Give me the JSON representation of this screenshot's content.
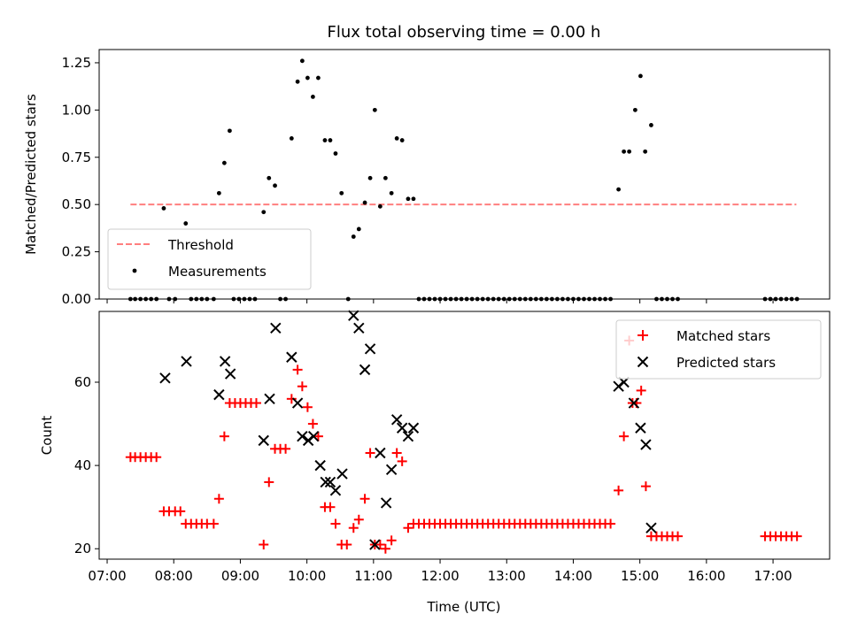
{
  "chart_data": {
    "type": "scatter",
    "title": "Flux total observing time = 0.00 h",
    "xlabel": "Time (UTC)",
    "xlim": [
      6.88,
      17.85
    ],
    "x_ticks": [
      {
        "v": 7,
        "label": "07:00"
      },
      {
        "v": 8,
        "label": "08:00"
      },
      {
        "v": 9,
        "label": "09:00"
      },
      {
        "v": 10,
        "label": "10:00"
      },
      {
        "v": 11,
        "label": "11:00"
      },
      {
        "v": 12,
        "label": "12:00"
      },
      {
        "v": 13,
        "label": "13:00"
      },
      {
        "v": 14,
        "label": "14:00"
      },
      {
        "v": 15,
        "label": "15:00"
      },
      {
        "v": 16,
        "label": "16:00"
      },
      {
        "v": 17,
        "label": "17:00"
      }
    ],
    "top_panel": {
      "ylabel": "Matched/Predicted stars",
      "ylim": [
        0,
        1.32
      ],
      "y_ticks": [
        "0.00",
        "0.25",
        "0.50",
        "0.75",
        "1.00",
        "1.25"
      ],
      "legend_position": "lower-left",
      "threshold": {
        "name": "Threshold",
        "value": 0.5,
        "x_range": [
          7.35,
          17.35
        ],
        "color": "#ff7f7f"
      },
      "measurements": {
        "name": "Measurements",
        "color": "#000000",
        "points": [
          [
            7.35,
            0
          ],
          [
            7.42,
            0
          ],
          [
            7.5,
            0
          ],
          [
            7.58,
            0
          ],
          [
            7.66,
            0
          ],
          [
            7.74,
            0
          ],
          [
            7.85,
            0.48
          ],
          [
            7.93,
            0
          ],
          [
            8.02,
            0
          ],
          [
            8.18,
            0.4
          ],
          [
            8.26,
            0
          ],
          [
            8.34,
            0
          ],
          [
            8.42,
            0
          ],
          [
            8.5,
            0
          ],
          [
            8.6,
            0
          ],
          [
            8.68,
            0.56
          ],
          [
            8.76,
            0.72
          ],
          [
            8.84,
            0.89
          ],
          [
            8.9,
            0
          ],
          [
            8.98,
            0
          ],
          [
            9.06,
            0
          ],
          [
            9.14,
            0
          ],
          [
            9.22,
            0
          ],
          [
            9.35,
            0.46
          ],
          [
            9.43,
            0.64
          ],
          [
            9.52,
            0.6
          ],
          [
            9.6,
            0
          ],
          [
            9.68,
            0
          ],
          [
            9.77,
            0.85
          ],
          [
            9.86,
            1.15
          ],
          [
            9.93,
            1.26
          ],
          [
            10.01,
            1.17
          ],
          [
            10.09,
            1.07
          ],
          [
            10.17,
            1.17
          ],
          [
            10.27,
            0.84
          ],
          [
            10.35,
            0.84
          ],
          [
            10.43,
            0.77
          ],
          [
            10.52,
            0.56
          ],
          [
            10.62,
            0
          ],
          [
            10.7,
            0.33
          ],
          [
            10.78,
            0.37
          ],
          [
            10.87,
            0.51
          ],
          [
            10.95,
            0.64
          ],
          [
            11.02,
            1.0
          ],
          [
            11.1,
            0.49
          ],
          [
            11.18,
            0.64
          ],
          [
            11.27,
            0.56
          ],
          [
            11.35,
            0.85
          ],
          [
            11.43,
            0.84
          ],
          [
            11.52,
            0.53
          ],
          [
            11.6,
            0.53
          ],
          [
            11.68,
            0
          ],
          [
            11.76,
            0
          ],
          [
            11.84,
            0
          ],
          [
            11.92,
            0
          ],
          [
            12.0,
            0
          ],
          [
            12.08,
            0
          ],
          [
            12.16,
            0
          ],
          [
            12.24,
            0
          ],
          [
            12.32,
            0
          ],
          [
            12.4,
            0
          ],
          [
            12.48,
            0
          ],
          [
            12.56,
            0
          ],
          [
            12.64,
            0
          ],
          [
            12.72,
            0
          ],
          [
            12.8,
            0
          ],
          [
            12.88,
            0
          ],
          [
            12.96,
            0
          ],
          [
            13.04,
            0
          ],
          [
            13.12,
            0
          ],
          [
            13.2,
            0
          ],
          [
            13.28,
            0
          ],
          [
            13.36,
            0
          ],
          [
            13.44,
            0
          ],
          [
            13.52,
            0
          ],
          [
            13.6,
            0
          ],
          [
            13.68,
            0
          ],
          [
            13.76,
            0
          ],
          [
            13.84,
            0
          ],
          [
            13.92,
            0
          ],
          [
            14.0,
            0
          ],
          [
            14.08,
            0
          ],
          [
            14.16,
            0
          ],
          [
            14.24,
            0
          ],
          [
            14.32,
            0
          ],
          [
            14.4,
            0
          ],
          [
            14.48,
            0
          ],
          [
            14.56,
            0
          ],
          [
            14.68,
            0.58
          ],
          [
            14.76,
            0.78
          ],
          [
            14.84,
            0.78
          ],
          [
            14.93,
            1.0
          ],
          [
            15.01,
            1.18
          ],
          [
            15.08,
            0.78
          ],
          [
            15.17,
            0.92
          ],
          [
            15.25,
            0
          ],
          [
            15.33,
            0
          ],
          [
            15.41,
            0
          ],
          [
            15.49,
            0
          ],
          [
            15.57,
            0
          ],
          [
            16.88,
            0
          ],
          [
            16.96,
            0
          ],
          [
            17.04,
            0
          ],
          [
            17.12,
            0
          ],
          [
            17.2,
            0
          ],
          [
            17.28,
            0
          ],
          [
            17.36,
            0
          ]
        ]
      }
    },
    "bottom_panel": {
      "ylabel": "Count",
      "ylim": [
        17.5,
        77
      ],
      "y_ticks": [
        20,
        40,
        60
      ],
      "legend_position": "upper-right",
      "series": [
        {
          "name": "Matched stars",
          "marker": "plus",
          "color": "#ff0000",
          "points": [
            [
              7.35,
              42
            ],
            [
              7.42,
              42
            ],
            [
              7.5,
              42
            ],
            [
              7.58,
              42
            ],
            [
              7.66,
              42
            ],
            [
              7.74,
              42
            ],
            [
              7.85,
              29
            ],
            [
              7.93,
              29
            ],
            [
              8.02,
              29
            ],
            [
              8.1,
              29
            ],
            [
              8.18,
              26
            ],
            [
              8.26,
              26
            ],
            [
              8.34,
              26
            ],
            [
              8.42,
              26
            ],
            [
              8.5,
              26
            ],
            [
              8.6,
              26
            ],
            [
              8.68,
              32
            ],
            [
              8.76,
              47
            ],
            [
              8.84,
              55
            ],
            [
              8.92,
              55
            ],
            [
              9.0,
              55
            ],
            [
              9.08,
              55
            ],
            [
              9.16,
              55
            ],
            [
              9.24,
              55
            ],
            [
              9.35,
              21
            ],
            [
              9.43,
              36
            ],
            [
              9.52,
              44
            ],
            [
              9.6,
              44
            ],
            [
              9.68,
              44
            ],
            [
              9.77,
              56
            ],
            [
              9.86,
              63
            ],
            [
              9.93,
              59
            ],
            [
              10.01,
              54
            ],
            [
              10.09,
              50
            ],
            [
              10.17,
              47
            ],
            [
              10.27,
              30
            ],
            [
              10.35,
              30
            ],
            [
              10.43,
              26
            ],
            [
              10.52,
              21
            ],
            [
              10.6,
              21
            ],
            [
              10.7,
              25
            ],
            [
              10.78,
              27
            ],
            [
              10.87,
              32
            ],
            [
              10.95,
              43
            ],
            [
              11.02,
              21
            ],
            [
              11.1,
              21
            ],
            [
              11.18,
              20
            ],
            [
              11.27,
              22
            ],
            [
              11.35,
              43
            ],
            [
              11.43,
              41
            ],
            [
              11.52,
              25
            ],
            [
              11.6,
              26
            ],
            [
              11.68,
              26
            ],
            [
              11.76,
              26
            ],
            [
              11.84,
              26
            ],
            [
              11.92,
              26
            ],
            [
              12.0,
              26
            ],
            [
              12.08,
              26
            ],
            [
              12.16,
              26
            ],
            [
              12.24,
              26
            ],
            [
              12.32,
              26
            ],
            [
              12.4,
              26
            ],
            [
              12.48,
              26
            ],
            [
              12.56,
              26
            ],
            [
              12.64,
              26
            ],
            [
              12.72,
              26
            ],
            [
              12.8,
              26
            ],
            [
              12.88,
              26
            ],
            [
              12.96,
              26
            ],
            [
              13.04,
              26
            ],
            [
              13.12,
              26
            ],
            [
              13.2,
              26
            ],
            [
              13.28,
              26
            ],
            [
              13.36,
              26
            ],
            [
              13.44,
              26
            ],
            [
              13.52,
              26
            ],
            [
              13.6,
              26
            ],
            [
              13.68,
              26
            ],
            [
              13.76,
              26
            ],
            [
              13.84,
              26
            ],
            [
              13.92,
              26
            ],
            [
              14.0,
              26
            ],
            [
              14.08,
              26
            ],
            [
              14.16,
              26
            ],
            [
              14.24,
              26
            ],
            [
              14.32,
              26
            ],
            [
              14.4,
              26
            ],
            [
              14.48,
              26
            ],
            [
              14.56,
              26
            ],
            [
              14.68,
              34
            ],
            [
              14.76,
              47
            ],
            [
              14.84,
              70
            ],
            [
              14.89,
              55
            ],
            [
              14.95,
              55
            ],
            [
              15.02,
              58
            ],
            [
              15.09,
              35
            ],
            [
              15.17,
              23
            ],
            [
              15.25,
              23
            ],
            [
              15.33,
              23
            ],
            [
              15.41,
              23
            ],
            [
              15.49,
              23
            ],
            [
              15.57,
              23
            ],
            [
              16.88,
              23
            ],
            [
              16.96,
              23
            ],
            [
              17.04,
              23
            ],
            [
              17.12,
              23
            ],
            [
              17.2,
              23
            ],
            [
              17.28,
              23
            ],
            [
              17.36,
              23
            ]
          ]
        },
        {
          "name": "Predicted stars",
          "marker": "x",
          "color": "#000000",
          "points": [
            [
              7.87,
              61
            ],
            [
              8.19,
              65
            ],
            [
              8.68,
              57
            ],
            [
              8.77,
              65
            ],
            [
              8.85,
              62
            ],
            [
              9.35,
              46
            ],
            [
              9.44,
              56
            ],
            [
              9.53,
              73
            ],
            [
              9.77,
              66
            ],
            [
              9.86,
              55
            ],
            [
              9.93,
              47
            ],
            [
              10.02,
              46
            ],
            [
              10.1,
              47
            ],
            [
              10.2,
              40
            ],
            [
              10.28,
              36
            ],
            [
              10.35,
              36
            ],
            [
              10.43,
              34
            ],
            [
              10.53,
              38
            ],
            [
              10.7,
              76
            ],
            [
              10.78,
              73
            ],
            [
              10.87,
              63
            ],
            [
              10.95,
              68
            ],
            [
              11.02,
              21
            ],
            [
              11.1,
              43
            ],
            [
              11.19,
              31
            ],
            [
              11.27,
              39
            ],
            [
              11.35,
              51
            ],
            [
              11.43,
              49
            ],
            [
              11.52,
              47
            ],
            [
              11.6,
              49
            ],
            [
              14.68,
              59
            ],
            [
              14.76,
              60
            ],
            [
              14.91,
              55
            ],
            [
              15.01,
              49
            ],
            [
              15.09,
              45
            ],
            [
              15.17,
              25
            ]
          ]
        }
      ]
    }
  }
}
